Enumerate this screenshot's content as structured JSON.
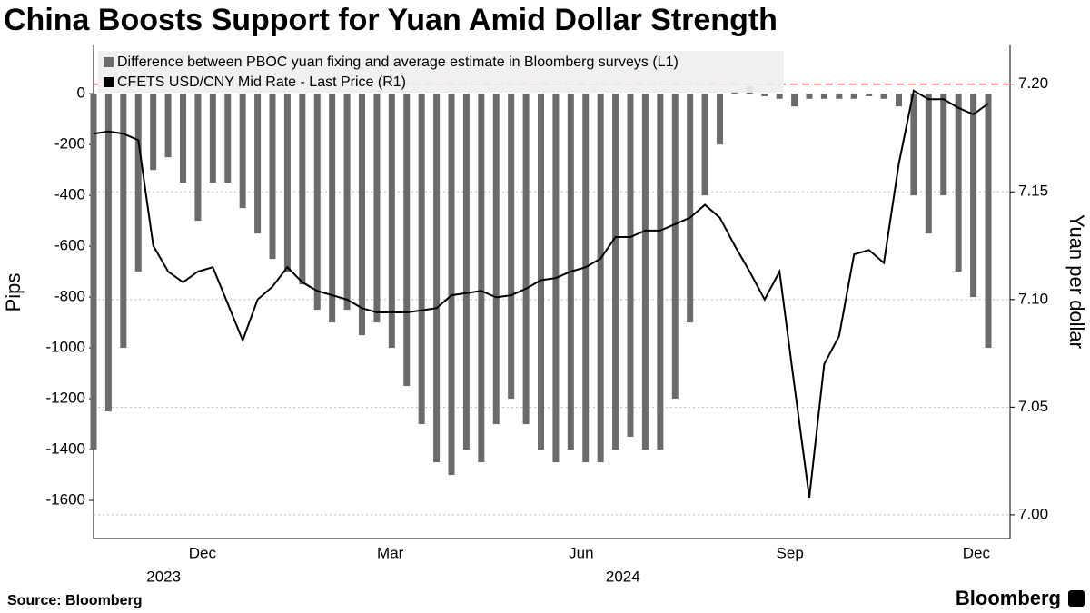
{
  "chart_data": {
    "type": "bar-line",
    "title": "China Boosts Support for Yuan Amid Dollar Strength",
    "source": "Source: Bloomberg",
    "brand": "Bloomberg",
    "ylabel": "Pips",
    "y2label": "Yuan per dollar",
    "categories": [
      null,
      null,
      null,
      null,
      null,
      null,
      null,
      null,
      null,
      null,
      null,
      null,
      null,
      null,
      null,
      null,
      null,
      null,
      null,
      null,
      null,
      null,
      null,
      null,
      null,
      null,
      null,
      null,
      null,
      null,
      null,
      null,
      null,
      null,
      null,
      null,
      null,
      null,
      null,
      null,
      null,
      null,
      null,
      null,
      null,
      null,
      null,
      null,
      null,
      null,
      null,
      null,
      null,
      null,
      null,
      null,
      null,
      null,
      null,
      null,
      null
    ],
    "xticks": [
      {
        "value": 7.3,
        "label": "Dec"
      },
      {
        "value": 19.9,
        "label": "Mar"
      },
      {
        "value": 32.7,
        "label": "Jun"
      },
      {
        "value": 46.7,
        "label": "Sep"
      },
      {
        "value": 59.2,
        "label": "Dec"
      }
    ],
    "xgroups": [
      {
        "value": 4.7,
        "label": "2023"
      },
      {
        "value": 35.5,
        "label": "2024"
      }
    ],
    "ylim": [
      -1750,
      190
    ],
    "yticks": [
      0,
      -200,
      -400,
      -600,
      -800,
      -1000,
      -1200,
      -1400,
      -1600
    ],
    "y2lim": [
      6.989,
      7.218
    ],
    "y2ticks": [
      {
        "value": 7.0,
        "label": "7.00"
      },
      7.05,
      {
        "value": 7.1,
        "label": "7.10"
      },
      7.15,
      {
        "value": 7.2,
        "label": "7.20"
      }
    ],
    "grid": "y2",
    "legend": "top-left",
    "reference_line": {
      "value": 7.2,
      "axis": "y2",
      "color": "#e05050"
    },
    "series": [
      {
        "name": "Difference between PBOC yuan fixing and average estimate in Bloomberg surveys (L1)",
        "color": "#6b6b6b",
        "type": "bar",
        "values": [
          -1400,
          -1250,
          -1000,
          -700,
          -300,
          -250,
          -350,
          -500,
          -350,
          -350,
          -450,
          -550,
          -650,
          -700,
          -750,
          -850,
          -900,
          -850,
          -950,
          -900,
          -1000,
          -1150,
          -1300,
          -1450,
          -1500,
          -1400,
          -1450,
          -1300,
          -1200,
          -1300,
          -1400,
          -1450,
          -1400,
          -1450,
          -1450,
          -1400,
          -1350,
          -1400,
          -1400,
          -1200,
          -900,
          -400,
          -200,
          10,
          30,
          -10,
          -20,
          -50,
          -20,
          -20,
          -20,
          -20,
          -10,
          -20,
          -50,
          -400,
          -550,
          -400,
          -700,
          -800,
          -1000
        ]
      },
      {
        "name": "CFETS USD/CNY Mid Rate - Last Price (R1)",
        "color": "#000000",
        "type": "line",
        "axis": "y2",
        "values": [
          7.177,
          7.178,
          7.177,
          7.174,
          7.125,
          7.113,
          7.108,
          7.113,
          7.115,
          7.098,
          7.081,
          7.1,
          7.106,
          7.115,
          7.108,
          7.104,
          7.102,
          7.1,
          7.096,
          7.094,
          7.094,
          7.094,
          7.095,
          7.096,
          7.102,
          7.103,
          7.104,
          7.101,
          7.102,
          7.105,
          7.109,
          7.11,
          7.113,
          7.115,
          7.119,
          7.129,
          7.129,
          7.132,
          7.132,
          7.135,
          7.138,
          7.144,
          7.138,
          7.125,
          7.113,
          7.1,
          7.113,
          7.06,
          7.008,
          7.07,
          7.083,
          7.121,
          7.123,
          7.117,
          7.163,
          7.197,
          7.193,
          7.193,
          7.189,
          7.186,
          7.191
        ]
      }
    ]
  }
}
